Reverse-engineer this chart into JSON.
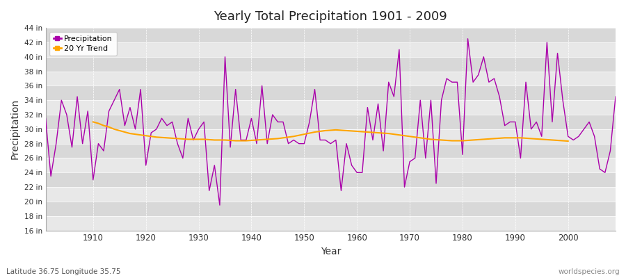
{
  "title": "Yearly Total Precipitation 1901 - 2009",
  "xlabel": "Year",
  "ylabel": "Precipitation",
  "subtitle": "Latitude 36.75 Longitude 35.75",
  "watermark": "worldspecies.org",
  "precip_color": "#aa00aa",
  "trend_color": "#ffa500",
  "bg_color": "#ffffff",
  "plot_bg_color": "#e8e8e8",
  "band_color_light": "#e8e8e8",
  "band_color_dark": "#d8d8d8",
  "ylim": [
    16,
    44
  ],
  "xlim": [
    1901,
    2009
  ],
  "yticks": [
    16,
    18,
    20,
    22,
    24,
    26,
    28,
    30,
    32,
    34,
    36,
    38,
    40,
    42,
    44
  ],
  "xticks": [
    1910,
    1920,
    1930,
    1940,
    1950,
    1960,
    1970,
    1980,
    1990,
    2000
  ],
  "years": [
    1901,
    1902,
    1903,
    1904,
    1905,
    1906,
    1907,
    1908,
    1909,
    1910,
    1911,
    1912,
    1913,
    1914,
    1915,
    1916,
    1917,
    1918,
    1919,
    1920,
    1921,
    1922,
    1923,
    1924,
    1925,
    1926,
    1927,
    1928,
    1929,
    1930,
    1931,
    1932,
    1933,
    1934,
    1935,
    1936,
    1937,
    1938,
    1939,
    1940,
    1941,
    1942,
    1943,
    1944,
    1945,
    1946,
    1947,
    1948,
    1949,
    1950,
    1951,
    1952,
    1953,
    1954,
    1955,
    1956,
    1957,
    1958,
    1959,
    1960,
    1961,
    1962,
    1963,
    1964,
    1965,
    1966,
    1967,
    1968,
    1969,
    1970,
    1971,
    1972,
    1973,
    1974,
    1975,
    1976,
    1977,
    1978,
    1979,
    1980,
    1981,
    1982,
    1983,
    1984,
    1985,
    1986,
    1987,
    1988,
    1989,
    1990,
    1991,
    1992,
    1993,
    1994,
    1995,
    1996,
    1997,
    1998,
    1999,
    2000,
    2001,
    2002,
    2003,
    2004,
    2005,
    2006,
    2007,
    2008,
    2009
  ],
  "precipitation": [
    31.5,
    23.5,
    28.0,
    34.0,
    32.0,
    27.5,
    34.5,
    28.0,
    32.5,
    23.0,
    28.0,
    27.0,
    32.5,
    34.0,
    35.5,
    30.5,
    33.0,
    30.0,
    35.5,
    25.0,
    29.5,
    30.0,
    31.5,
    30.5,
    31.0,
    28.0,
    26.0,
    31.5,
    28.5,
    30.0,
    31.0,
    21.5,
    25.0,
    19.5,
    40.0,
    27.5,
    35.5,
    28.5,
    28.5,
    31.5,
    28.0,
    36.0,
    28.0,
    32.0,
    31.0,
    31.0,
    28.0,
    28.5,
    28.0,
    28.0,
    31.0,
    35.5,
    28.5,
    28.5,
    28.0,
    28.5,
    21.5,
    28.0,
    25.0,
    24.0,
    24.0,
    33.0,
    28.5,
    33.5,
    27.0,
    36.5,
    34.5,
    41.0,
    22.0,
    25.5,
    26.0,
    34.0,
    26.0,
    34.0,
    22.5,
    34.0,
    37.0,
    36.5,
    36.5,
    26.5,
    42.5,
    36.5,
    37.5,
    40.0,
    36.5,
    37.0,
    34.5,
    30.5,
    31.0,
    31.0,
    26.0,
    36.5,
    30.0,
    31.0,
    29.0,
    42.0,
    31.0,
    40.5,
    34.0,
    29.0,
    28.5,
    29.0,
    30.0,
    31.0,
    29.0,
    24.5,
    24.0,
    27.0,
    34.5
  ],
  "trend_years": [
    1910,
    1911,
    1912,
    1913,
    1914,
    1915,
    1916,
    1917,
    1918,
    1919,
    1920,
    1921,
    1922,
    1923,
    1924,
    1925,
    1926,
    1927,
    1928,
    1929,
    1930,
    1931,
    1932,
    1933,
    1934,
    1935,
    1936,
    1937,
    1938,
    1939,
    1940,
    1941,
    1942,
    1943,
    1944,
    1945,
    1946,
    1947,
    1948,
    1949,
    1950,
    1951,
    1952,
    1953,
    1954,
    1955,
    1956,
    1957,
    1958,
    1959,
    1960,
    1961,
    1962,
    1963,
    1964,
    1965,
    1966,
    1967,
    1968,
    1969,
    1970,
    1971,
    1972,
    1973,
    1974,
    1975,
    1976,
    1977,
    1978,
    1979,
    1980,
    1981,
    1982,
    1983,
    1984,
    1985,
    1986,
    1987,
    1988,
    1989,
    1990,
    1991,
    1992,
    1993,
    1994,
    1995,
    1996,
    1997,
    1998,
    1999,
    2000
  ],
  "trend": [
    31.0,
    30.8,
    30.5,
    30.3,
    30.0,
    29.8,
    29.6,
    29.4,
    29.3,
    29.2,
    29.1,
    29.0,
    28.9,
    28.85,
    28.8,
    28.75,
    28.7,
    28.65,
    28.6,
    28.6,
    28.6,
    28.6,
    28.55,
    28.5,
    28.5,
    28.5,
    28.45,
    28.4,
    28.4,
    28.4,
    28.45,
    28.5,
    28.55,
    28.6,
    28.65,
    28.7,
    28.8,
    28.9,
    29.0,
    29.15,
    29.3,
    29.45,
    29.6,
    29.7,
    29.8,
    29.85,
    29.9,
    29.85,
    29.8,
    29.75,
    29.7,
    29.65,
    29.6,
    29.55,
    29.5,
    29.45,
    29.4,
    29.3,
    29.2,
    29.1,
    29.0,
    28.9,
    28.8,
    28.7,
    28.6,
    28.55,
    28.5,
    28.45,
    28.4,
    28.4,
    28.4,
    28.45,
    28.5,
    28.55,
    28.6,
    28.65,
    28.7,
    28.75,
    28.8,
    28.8,
    28.8,
    28.8,
    28.75,
    28.7,
    28.65,
    28.6,
    28.55,
    28.5,
    28.45,
    28.4,
    28.35
  ]
}
